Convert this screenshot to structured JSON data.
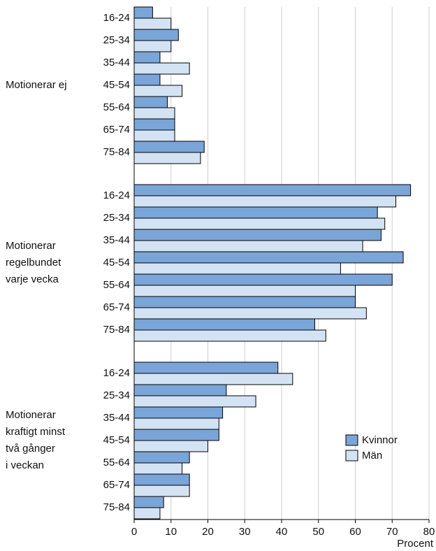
{
  "chart_data": {
    "type": "grouped-hbar",
    "x_label": "Procent",
    "xlim": [
      0,
      80
    ],
    "xticks": [
      0,
      10,
      20,
      30,
      40,
      50,
      60,
      70,
      80
    ],
    "grid": true,
    "legend": "lower-right",
    "series": [
      {
        "name": "Kvinnor",
        "color": "#7aa5d9"
      },
      {
        "name": "Män",
        "color": "#d4e3f4"
      }
    ],
    "groups": [
      {
        "label": [
          "Motionerar ej"
        ],
        "categories": [
          "16-24",
          "25-34",
          "35-44",
          "45-54",
          "55-64",
          "65-74",
          "75-84"
        ],
        "series": [
          {
            "values": [
              5,
              12,
              7,
              7,
              9,
              11,
              19
            ]
          },
          {
            "values": [
              10,
              10,
              15,
              13,
              11,
              11,
              18
            ]
          }
        ]
      },
      {
        "label": [
          "Motionerar",
          "regelbundet",
          "varje vecka"
        ],
        "categories": [
          "16-24",
          "25-34",
          "35-44",
          "45-54",
          "55-64",
          "65-74",
          "75-84"
        ],
        "series": [
          {
            "values": [
              75,
              66,
              67,
              73,
              70,
              60,
              49
            ]
          },
          {
            "values": [
              71,
              68,
              62,
              56,
              60,
              63,
              52
            ]
          }
        ]
      },
      {
        "label": [
          "Motionerar",
          "kraftigt minst",
          "två gånger",
          "i veckan"
        ],
        "categories": [
          "16-24",
          "25-34",
          "35-44",
          "45-54",
          "55-64",
          "65-74",
          "75-84"
        ],
        "series": [
          {
            "values": [
              39,
              25,
              24,
              23,
              15,
              15,
              8
            ]
          },
          {
            "values": [
              43,
              33,
              23,
              20,
              13,
              15,
              7
            ]
          }
        ]
      }
    ]
  }
}
